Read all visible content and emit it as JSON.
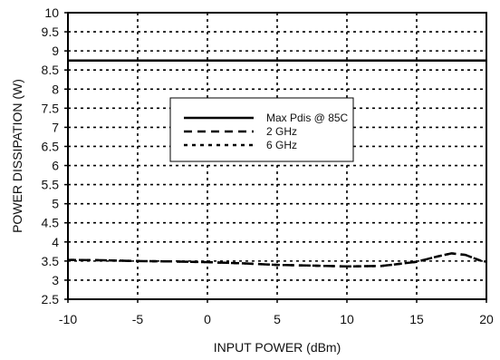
{
  "chart_data": {
    "type": "line",
    "xlabel": "INPUT POWER (dBm)",
    "ylabel": "POWER DISSIPATION (W)",
    "xlim": [
      -10,
      20
    ],
    "ylim": [
      2.5,
      10
    ],
    "xticks": [
      -10,
      -5,
      0,
      5,
      10,
      15,
      20
    ],
    "yticks": [
      2.5,
      3,
      3.5,
      4,
      4.5,
      5,
      5.5,
      6,
      6.5,
      7,
      7.5,
      8,
      8.5,
      9,
      9.5,
      10
    ],
    "xtick_labels": [
      "-10",
      "-5",
      "0",
      "5",
      "10",
      "15",
      "20"
    ],
    "ytick_labels": [
      "2.5",
      "3",
      "3.5",
      "4",
      "4.5",
      "5",
      "5.5",
      "6",
      "6.5",
      "7",
      "7.5",
      "8",
      "8.5",
      "9",
      "9.5",
      "10"
    ],
    "grid": true,
    "legend_position": "center-left",
    "series": [
      {
        "name": "Max Pdis @ 85C",
        "style": "solid",
        "x": [
          -10,
          20
        ],
        "y": [
          8.75,
          8.75
        ]
      },
      {
        "name": "2 GHz",
        "style": "dashed",
        "x": [
          -10,
          -7.5,
          -5,
          -2.5,
          0,
          2.5,
          5,
          7.5,
          10,
          12.5,
          15,
          16.5,
          17.5,
          18.5,
          19.5,
          20
        ],
        "y": [
          3.53,
          3.52,
          3.5,
          3.49,
          3.47,
          3.44,
          3.4,
          3.38,
          3.36,
          3.37,
          3.48,
          3.62,
          3.7,
          3.66,
          3.52,
          3.48
        ]
      },
      {
        "name": "6 GHz",
        "style": "dotted",
        "x": [
          -10,
          -7.5,
          -5,
          -2.5,
          0,
          2.5,
          5,
          7.5,
          10,
          12.5,
          15,
          16.5,
          17.5,
          18.5,
          19.5,
          20
        ],
        "y": [
          3.53,
          3.52,
          3.5,
          3.49,
          3.47,
          3.44,
          3.4,
          3.38,
          3.36,
          3.37,
          3.48,
          3.62,
          3.7,
          3.66,
          3.52,
          3.48
        ]
      }
    ]
  }
}
